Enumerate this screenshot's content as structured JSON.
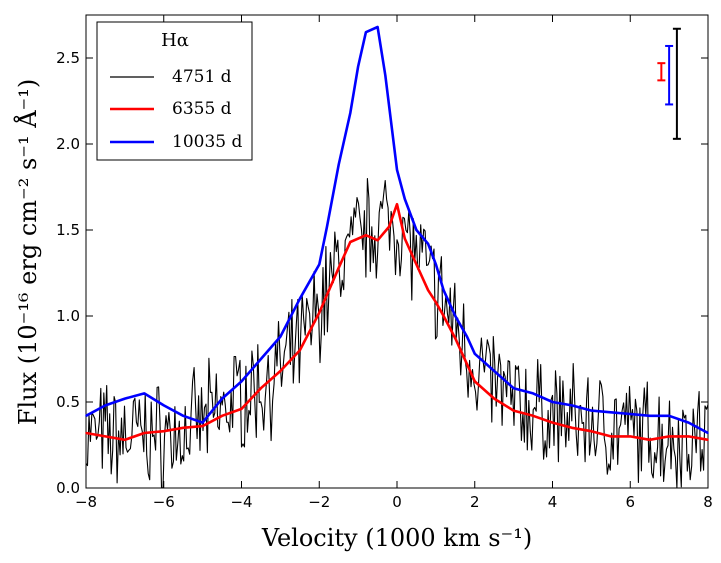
{
  "chart_data": {
    "type": "line",
    "title": "",
    "xlabel": "Velocity (1000 km s⁻¹)",
    "ylabel": "Flux (10⁻¹⁶ erg cm⁻² s⁻¹ Å⁻¹)",
    "xlim": [
      -8,
      8
    ],
    "ylim": [
      0,
      2.75
    ],
    "xticks": [
      "−8",
      "−6",
      "−4",
      "−2",
      "0",
      "2",
      "4",
      "6",
      "8"
    ],
    "xtick_values": [
      -8,
      -6,
      -4,
      -2,
      0,
      2,
      4,
      6,
      8
    ],
    "yticks": [
      "0.0",
      "0.5",
      "1.0",
      "1.5",
      "2.0",
      "2.5"
    ],
    "ytick_values": [
      0,
      0.5,
      1.0,
      1.5,
      2.0,
      2.5
    ],
    "legend": {
      "title": "Hα",
      "position": "upper-left"
    },
    "series": [
      {
        "name": "4751 d",
        "color": "#000000",
        "noisy": true,
        "x": [
          -8,
          -7,
          -6.5,
          -6,
          -5.5,
          -5,
          -4.5,
          -4,
          -3.5,
          -3,
          -2.5,
          -2,
          -1.5,
          -1,
          -0.5,
          0,
          0.5,
          1,
          1.5,
          2,
          3,
          4,
          5,
          6,
          7,
          8
        ],
        "y": [
          0.3,
          0.3,
          0.32,
          0.3,
          0.32,
          0.38,
          0.45,
          0.55,
          0.58,
          0.68,
          0.82,
          1.05,
          1.3,
          1.45,
          1.55,
          1.55,
          1.35,
          1.15,
          0.95,
          0.72,
          0.5,
          0.42,
          0.38,
          0.33,
          0.3,
          0.3
        ]
      },
      {
        "name": "6355 d",
        "color": "#ff0000",
        "x": [
          -8,
          -7.5,
          -7,
          -6.5,
          -6,
          -5.5,
          -5,
          -4.5,
          -4,
          -3.5,
          -3,
          -2.5,
          -2,
          -1.5,
          -1.2,
          -0.8,
          -0.5,
          -0.2,
          0,
          0.2,
          0.5,
          0.8,
          1.0,
          1.2,
          1.5,
          1.8,
          2.0,
          2.5,
          3.0,
          3.5,
          4.0,
          4.5,
          5.0,
          5.5,
          6.0,
          6.5,
          7.0,
          7.5,
          8.0
        ],
        "y": [
          0.32,
          0.3,
          0.28,
          0.32,
          0.33,
          0.35,
          0.36,
          0.42,
          0.46,
          0.58,
          0.68,
          0.8,
          1.02,
          1.28,
          1.43,
          1.47,
          1.44,
          1.52,
          1.65,
          1.45,
          1.3,
          1.15,
          1.08,
          1.0,
          0.87,
          0.72,
          0.62,
          0.52,
          0.45,
          0.42,
          0.38,
          0.35,
          0.33,
          0.3,
          0.3,
          0.28,
          0.3,
          0.3,
          0.28
        ]
      },
      {
        "name": "10035 d",
        "color": "#0000ff",
        "x": [
          -8,
          -7.5,
          -7,
          -6.5,
          -6,
          -5.5,
          -5,
          -4.5,
          -4,
          -3.5,
          -3,
          -2.5,
          -2,
          -1.8,
          -1.5,
          -1.2,
          -1.0,
          -0.8,
          -0.5,
          -0.3,
          0,
          0.2,
          0.5,
          0.8,
          1.0,
          1.2,
          1.5,
          1.8,
          2.0,
          2.5,
          3.0,
          3.5,
          4.0,
          4.5,
          5.0,
          5.5,
          6.0,
          6.5,
          7.0,
          7.5,
          8.0
        ],
        "y": [
          0.42,
          0.48,
          0.52,
          0.55,
          0.48,
          0.42,
          0.38,
          0.52,
          0.62,
          0.75,
          0.88,
          1.1,
          1.3,
          1.52,
          1.88,
          2.18,
          2.45,
          2.65,
          2.68,
          2.4,
          1.85,
          1.68,
          1.5,
          1.42,
          1.3,
          1.15,
          1.0,
          0.88,
          0.78,
          0.68,
          0.58,
          0.55,
          0.5,
          0.48,
          0.45,
          0.44,
          0.43,
          0.42,
          0.42,
          0.38,
          0.32
        ]
      }
    ],
    "error_bars": [
      {
        "name": "6355 d",
        "color": "#ff0000",
        "x": 6.8,
        "center": 2.42,
        "half": 0.05
      },
      {
        "name": "10035 d",
        "color": "#0000ff",
        "x": 7.0,
        "center": 2.4,
        "half": 0.17
      },
      {
        "name": "4751 d",
        "color": "#000000",
        "x": 7.2,
        "center": 2.35,
        "half": 0.32
      }
    ]
  }
}
